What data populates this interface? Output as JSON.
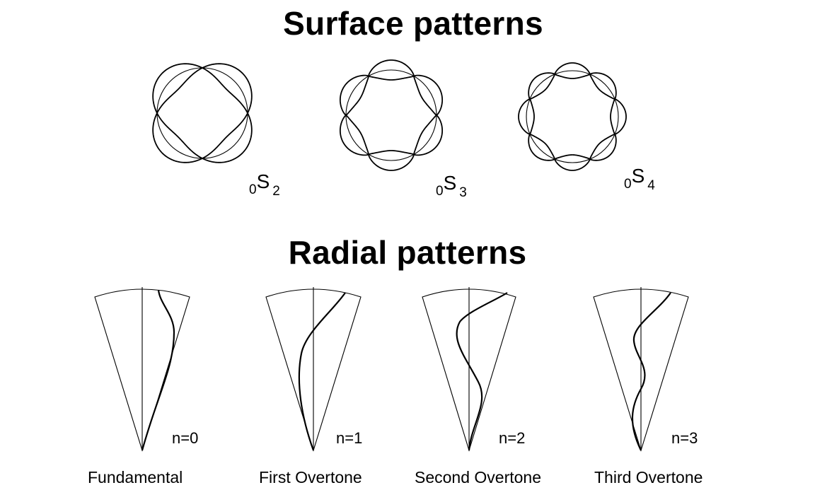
{
  "surface_title": "Surface patterns",
  "radial_title": "Radial patterns",
  "surface_modes": [
    {
      "pre": "0",
      "main": "S",
      "post": "2",
      "order": 2
    },
    {
      "pre": "0",
      "main": "S",
      "post": "3",
      "order": 3
    },
    {
      "pre": "0",
      "main": "S",
      "post": "4",
      "order": 4
    }
  ],
  "radial_modes": [
    {
      "n_label": "n=0",
      "caption": "Fundamental",
      "overtone": 0
    },
    {
      "n_label": "n=1",
      "caption": "First Overtone",
      "overtone": 1
    },
    {
      "n_label": "n=2",
      "caption": "Second Overtone",
      "overtone": 2
    },
    {
      "n_label": "n=3",
      "caption": "Third Overtone",
      "overtone": 3
    }
  ],
  "colors": {
    "ink": "#000000",
    "background": "#ffffff"
  }
}
